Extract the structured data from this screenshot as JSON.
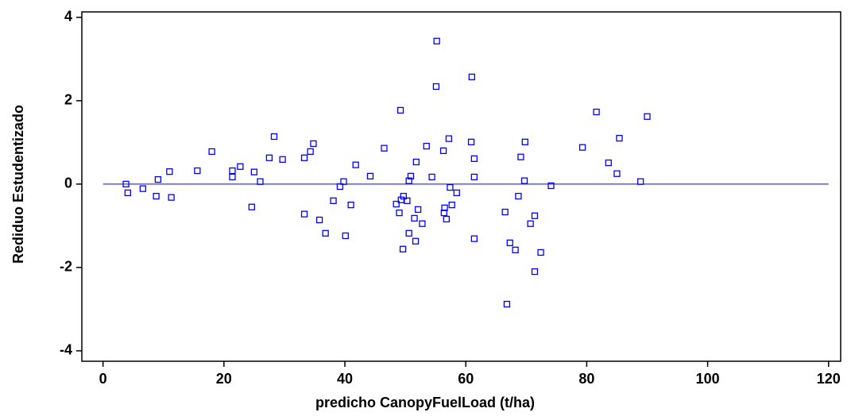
{
  "chart_data": {
    "type": "scatter",
    "x_label": "predicho CanopyFuelLoad (t/ha)",
    "y_label": "Rediduo Estudentizado",
    "color": "#0000ff",
    "hline": 0,
    "xlim": [
      -3.5,
      122
    ],
    "xticks": [
      0,
      20,
      40,
      60,
      80,
      100,
      120
    ],
    "ylim": [
      -4.25,
      4.13
    ],
    "yticks": [
      -4,
      -2,
      0,
      2,
      4
    ],
    "x": [
      3.8,
      4.1,
      6.6,
      8.8,
      9.1,
      11.0,
      11.3,
      15.6,
      18.0,
      21.4,
      21.4,
      22.7,
      24.6,
      25.0,
      26.0,
      27.5,
      28.3,
      29.7,
      33.3,
      33.3,
      34.3,
      34.8,
      35.8,
      36.8,
      38.1,
      39.2,
      39.8,
      40.1,
      41.0,
      41.8,
      44.2,
      46.5,
      48.5,
      49.0,
      49.2,
      49.3,
      49.6,
      49.7,
      50.3,
      50.6,
      50.6,
      50.9,
      51.5,
      51.7,
      51.8,
      52.1,
      52.8,
      53.5,
      54.4,
      55.1,
      55.2,
      56.3,
      56.4,
      56.5,
      56.8,
      57.2,
      57.4,
      57.7,
      58.5,
      60.9,
      61.0,
      61.4,
      61.4,
      61.4,
      66.5,
      66.8,
      67.3,
      68.2,
      68.7,
      69.1,
      69.7,
      69.8,
      70.7,
      71.4,
      71.4,
      72.4,
      74.1,
      79.3,
      81.6,
      83.6,
      85.0,
      85.4,
      88.9,
      90.0
    ],
    "values": [
      0.0,
      -0.21,
      -0.11,
      -0.29,
      0.11,
      0.3,
      -0.32,
      0.32,
      0.78,
      0.32,
      0.17,
      0.42,
      -0.55,
      0.29,
      0.06,
      0.63,
      1.14,
      0.59,
      -0.72,
      0.63,
      0.78,
      0.97,
      -0.86,
      -1.18,
      -0.4,
      -0.06,
      0.06,
      -1.24,
      -0.5,
      0.46,
      0.19,
      0.86,
      -0.48,
      -0.69,
      1.77,
      -0.38,
      -1.56,
      -0.29,
      -0.4,
      -1.18,
      0.08,
      0.19,
      -0.82,
      -1.37,
      0.53,
      -0.61,
      -0.95,
      0.91,
      0.17,
      2.34,
      3.43,
      0.8,
      -0.69,
      -0.57,
      -0.84,
      1.09,
      -0.08,
      -0.5,
      -0.21,
      1.01,
      2.57,
      0.61,
      0.17,
      -1.31,
      -0.67,
      -2.88,
      -1.41,
      -1.58,
      -0.29,
      0.65,
      0.08,
      1.01,
      -0.95,
      -0.76,
      -2.1,
      -1.64,
      -0.04,
      0.88,
      1.73,
      0.51,
      0.25,
      1.1,
      0.06,
      1.62
    ]
  }
}
